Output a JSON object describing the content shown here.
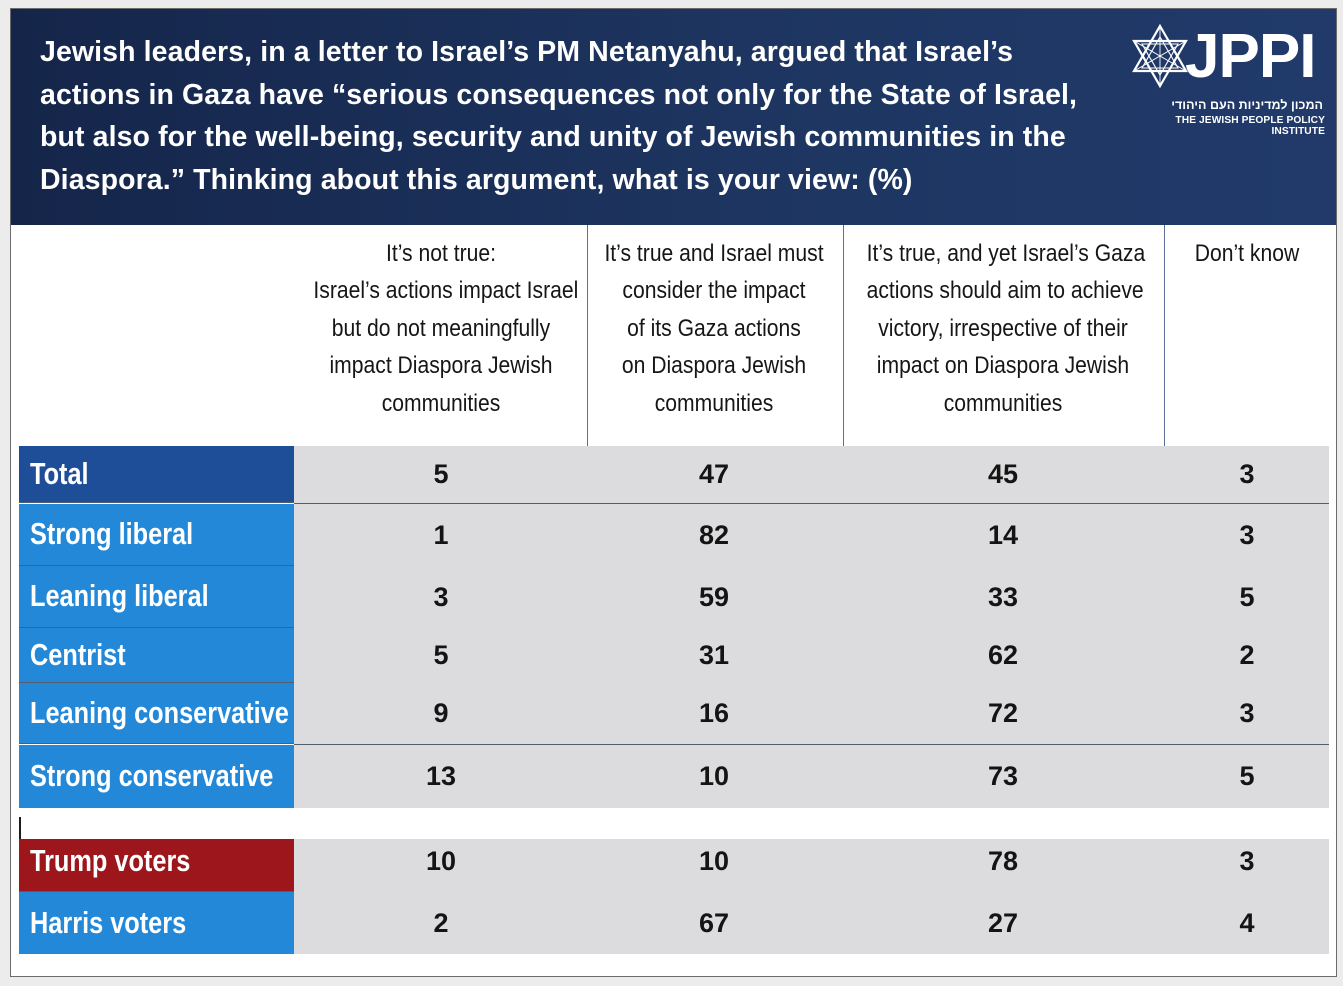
{
  "title": "Jewish leaders, in a letter to Israel’s PM Netanyahu, argued that Israel’s actions in Gaza have “serious consequences not only for the State of Israel, but also for the well-being, security  and unity of Jewish communities in the Diaspora.” Thinking about this argument, what is your view: (%)",
  "logo": {
    "word": "JPPI",
    "hebrew": "המכון למדיניות העם היהודי",
    "english": "THE JEWISH PEOPLE POLICY INSTITUTE"
  },
  "colors": {
    "header_bg": "#1d3560",
    "total_label": "#1f4e98",
    "ideology_label": "#2388d8",
    "trump_label": "#9d161c",
    "harris_label": "#2388d8",
    "cell_bg": "#dcdcde"
  },
  "chart_data": {
    "type": "table",
    "title": "Jewish leaders, in a letter to Israel’s PM Netanyahu, argued that Israel’s actions in Gaza have “serious consequences not only for the State of Israel, but also for the well-being, security  and unity of Jewish communities in the Diaspora.” Thinking about this argument, what is your view: (%)",
    "columns": [
      [
        "It’s not true:",
        "Israel’s actions impact Israel",
        "but do not meaningfully",
        "impact Diaspora Jewish",
        "communities"
      ],
      [
        "It’s true and Israel must",
        "consider the impact",
        "of its Gaza actions",
        "on Diaspora Jewish",
        "communities"
      ],
      [
        "It’s true, and yet Israel’s Gaza",
        "actions should aim to achieve",
        "victory, irrespective of their",
        "impact on Diaspora Jewish",
        "communities"
      ],
      [
        "Don’t know"
      ]
    ],
    "rows": [
      {
        "label": "Total",
        "values": [
          5,
          47,
          45,
          3
        ]
      },
      {
        "label": "Strong liberal",
        "values": [
          1,
          82,
          14,
          3
        ]
      },
      {
        "label": "Leaning liberal",
        "values": [
          3,
          59,
          33,
          5
        ]
      },
      {
        "label": "Centrist",
        "values": [
          5,
          31,
          62,
          2
        ]
      },
      {
        "label": "Leaning conservative",
        "values": [
          9,
          16,
          72,
          3
        ]
      },
      {
        "label": "Strong conservative",
        "values": [
          13,
          10,
          73,
          5
        ]
      },
      {
        "label": "Trump voters",
        "values": [
          10,
          10,
          78,
          3
        ]
      },
      {
        "label": "Harris voters",
        "values": [
          2,
          67,
          27,
          4
        ]
      }
    ]
  }
}
